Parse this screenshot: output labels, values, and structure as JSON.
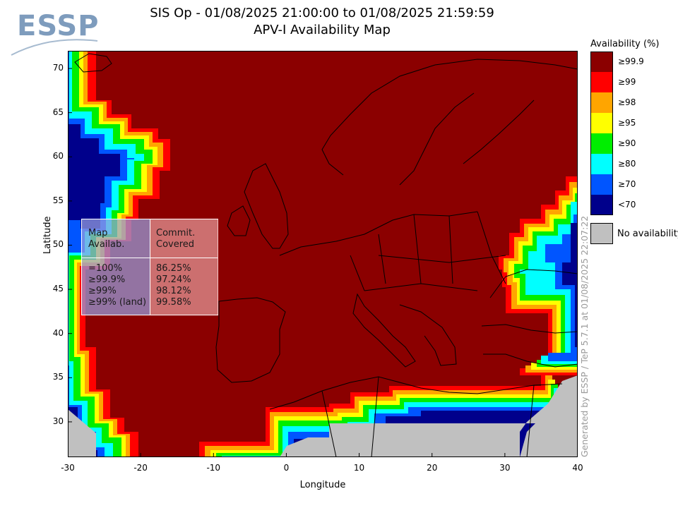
{
  "logo": {
    "text": "ESSP"
  },
  "title": {
    "line1": "SIS Op - 01/08/2025 21:00:00 to 01/08/2025 21:59:59",
    "line2": "APV-I Availability Map"
  },
  "axes": {
    "xlabel": "Longitude",
    "ylabel": "Latitude",
    "x_ticks": [
      "-30",
      "-20",
      "-10",
      "0",
      "10",
      "20",
      "30",
      "40"
    ],
    "y_ticks": [
      "30",
      "35",
      "40",
      "45",
      "50",
      "55",
      "60",
      "65",
      "70"
    ],
    "x_range": [
      -30,
      40
    ],
    "y_range": [
      26,
      72
    ]
  },
  "stats": {
    "header": {
      "col1_line1": "Map",
      "col1_line2": "Availab.",
      "col2_line1": "Commit.",
      "col2_line2": "Covered"
    },
    "rows": [
      {
        "label": "=100%",
        "value": "86.25%"
      },
      {
        "label": "≥99.9%",
        "value": "97.24%"
      },
      {
        "label": "≥99%",
        "value": "98.12%"
      },
      {
        "label": "≥99% (land)",
        "value": "99.58%"
      }
    ]
  },
  "legend": {
    "title": "Availability (%)",
    "items": [
      {
        "label": "≥99.9",
        "color": "#8b0000"
      },
      {
        "label": "≥99",
        "color": "#ff0000"
      },
      {
        "label": "≥98",
        "color": "#ffa500"
      },
      {
        "label": "≥95",
        "color": "#ffff00"
      },
      {
        "label": "≥90",
        "color": "#00ee00"
      },
      {
        "label": "≥80",
        "color": "#00ffff"
      },
      {
        "label": "≥70",
        "color": "#0055ff"
      },
      {
        "label": "<70",
        "color": "#00008b"
      }
    ],
    "no_availability": {
      "label": "No availability",
      "color": "#c0c0c0"
    }
  },
  "generated_by": "Generated by ESSP / TeP 5.7.1 at 01/08/2025 22:07:22"
}
